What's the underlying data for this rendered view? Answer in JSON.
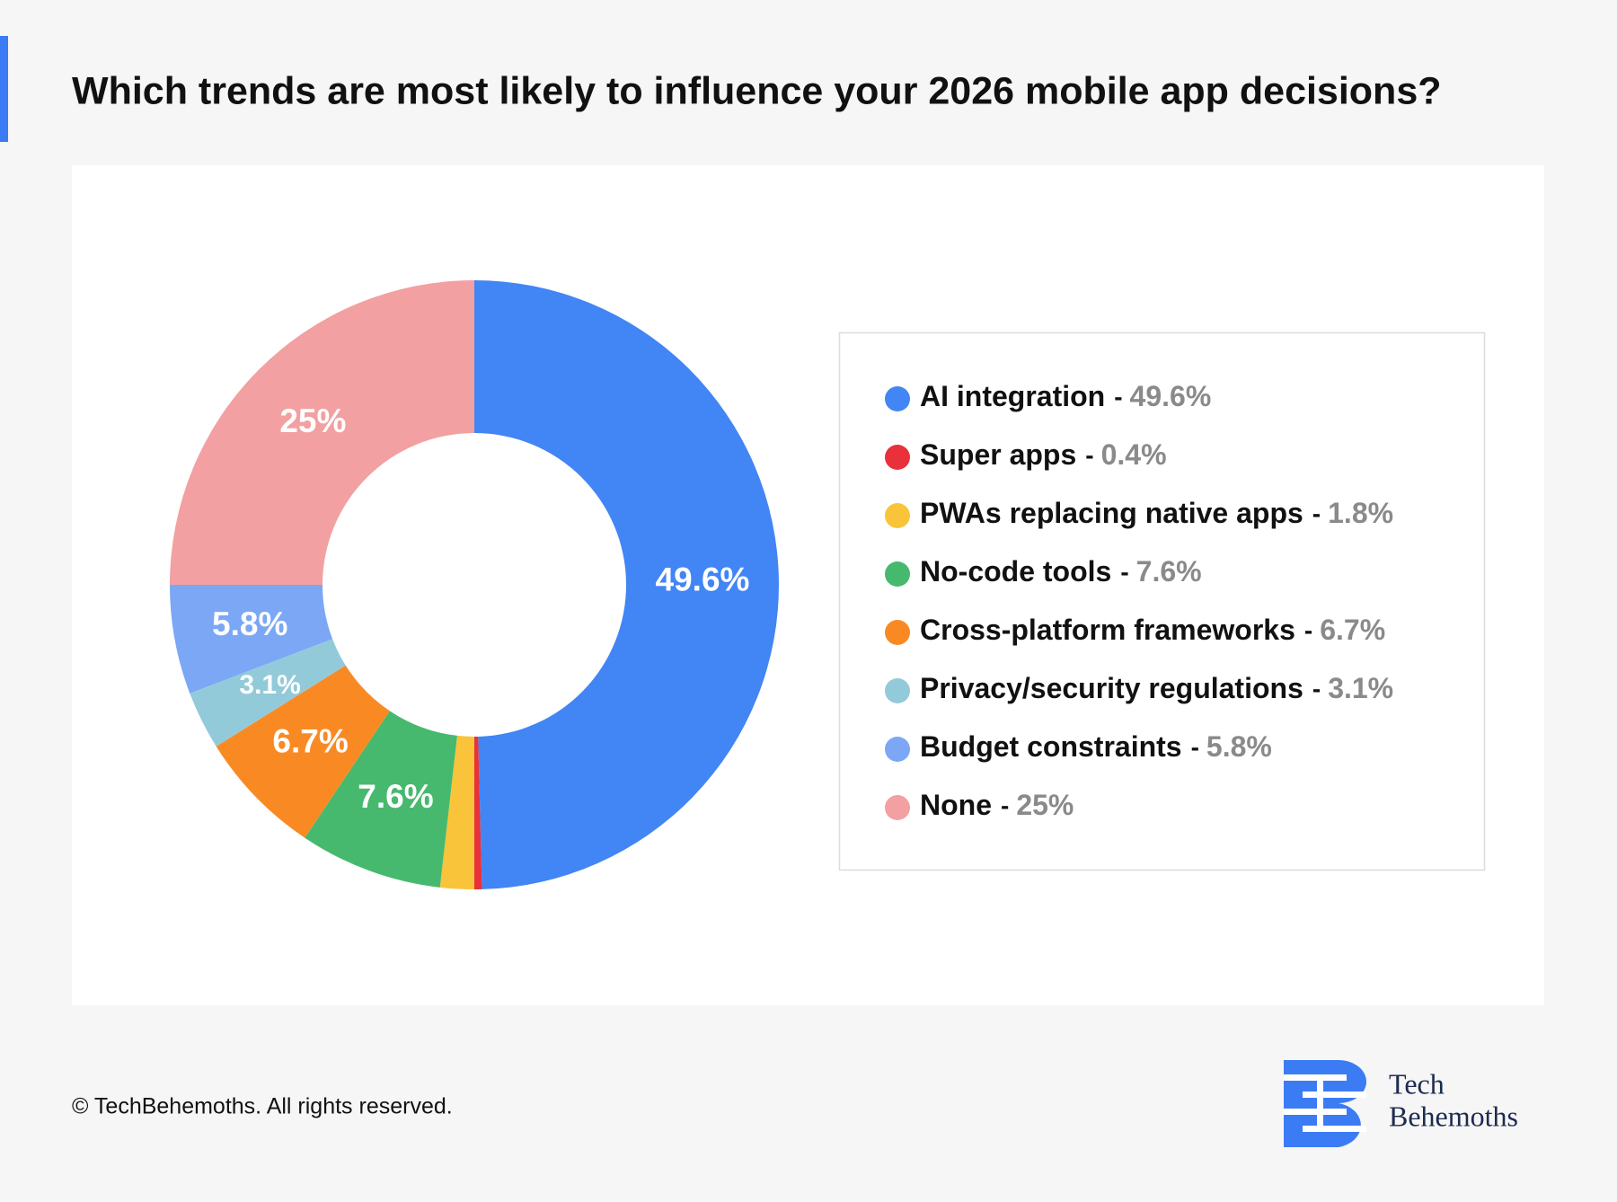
{
  "chart_data": {
    "type": "pie",
    "title": "Which trends are most likely to influence your 2026 mobile app decisions?",
    "categories": [
      "AI integration",
      "Super apps",
      "PWAs replacing native apps",
      "No-code tools",
      "Cross-platform frameworks",
      "Privacy/security regulations",
      "Budget constraints",
      "None"
    ],
    "values": [
      49.6,
      0.4,
      1.8,
      7.6,
      6.7,
      3.1,
      5.8,
      25
    ],
    "value_labels": [
      "49.6%",
      "0.4%",
      "1.8%",
      "7.6%",
      "6.7%",
      "3.1%",
      "5.8%",
      "25%"
    ],
    "colors": [
      "#4285f4",
      "#e8313a",
      "#f9c43a",
      "#46b96e",
      "#f98a23",
      "#93cad9",
      "#7ba7f5",
      "#f2a0a1"
    ],
    "legend_separator": "-",
    "legend": "right"
  },
  "footer": "© TechBehemoths. All rights reserved.",
  "logo": [
    "Tech",
    "Behemoths"
  ]
}
